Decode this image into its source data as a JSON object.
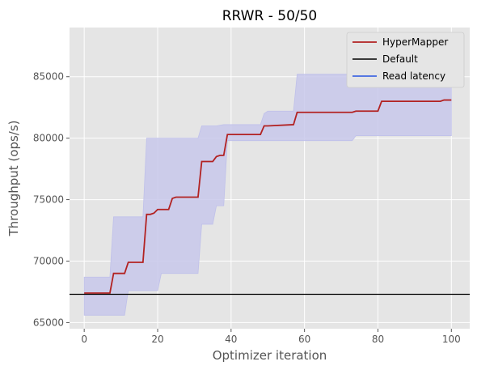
{
  "chart_data": {
    "type": "line",
    "title": "RRWR - 50/50",
    "xlabel": "Optimizer iteration",
    "ylabel": "Throughput (ops/s)",
    "xlim": [
      -4,
      105
    ],
    "ylim": [
      64500,
      89000
    ],
    "xticks": [
      0,
      20,
      40,
      60,
      80,
      100
    ],
    "yticks": [
      65000,
      70000,
      75000,
      80000,
      85000
    ],
    "grid": true,
    "legend_position": "top-right",
    "series": [
      {
        "name": "HyperMapper",
        "color": "#b22222",
        "x": [
          0,
          7,
          8,
          11,
          12,
          16,
          17,
          18,
          19,
          20,
          23,
          24,
          25,
          31,
          32,
          35,
          36,
          37,
          38,
          39,
          48,
          49,
          50,
          57,
          58,
          73,
          74,
          80,
          81,
          97,
          98,
          100
        ],
        "y": [
          67400,
          67400,
          69000,
          69000,
          69900,
          69900,
          73800,
          73800,
          73900,
          74200,
          74200,
          75100,
          75200,
          75200,
          78100,
          78100,
          78500,
          78600,
          78600,
          80300,
          80300,
          81000,
          81000,
          81100,
          82100,
          82100,
          82200,
          82200,
          83000,
          83000,
          83100,
          83100
        ]
      },
      {
        "name": "Default",
        "color": "#000000",
        "x": [
          -4,
          105
        ],
        "y": [
          67300,
          67300
        ]
      },
      {
        "name": "Read latency",
        "color": "#4169e1",
        "x": [],
        "y": []
      }
    ],
    "band": {
      "color": "#c8c8eb",
      "x": [
        0,
        7,
        8,
        11,
        12,
        16,
        17,
        20,
        21,
        31,
        32,
        35,
        36,
        38,
        39,
        48,
        49,
        50,
        57,
        58,
        73,
        74,
        80,
        81,
        100
      ],
      "lower": [
        65600,
        65600,
        65600,
        65600,
        67600,
        67600,
        67600,
        67600,
        69000,
        69000,
        73000,
        73000,
        74500,
        74500,
        79800,
        79800,
        79800,
        79800,
        79800,
        79800,
        79800,
        80200,
        80200,
        80200,
        80200
      ],
      "upper": [
        68700,
        68700,
        73600,
        73600,
        73600,
        73600,
        80000,
        80000,
        80000,
        80000,
        81000,
        81000,
        81000,
        81100,
        81100,
        81100,
        82000,
        82200,
        82200,
        85200,
        85200,
        85200,
        85200,
        85200,
        85200
      ]
    }
  }
}
